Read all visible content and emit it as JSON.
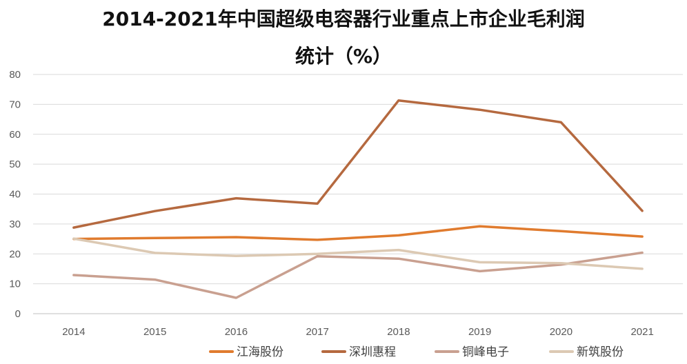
{
  "chart_data": {
    "type": "line",
    "title_line1": "2014-2021年中国超级电容器行业重点上市企业毛利润",
    "title_line2": "统计（%）",
    "x": [
      "2014",
      "2015",
      "2016",
      "2017",
      "2018",
      "2019",
      "2020",
      "2021"
    ],
    "ylim": [
      0,
      80
    ],
    "yticks": [
      "0",
      "10",
      "20",
      "30",
      "40",
      "50",
      "60",
      "70",
      "80"
    ],
    "grid": true,
    "legend_position": "bottom",
    "series": [
      {
        "name": "江海股份",
        "color": "#E07B2E",
        "values": [
          25.0,
          25.3,
          25.6,
          24.7,
          26.2,
          29.2,
          27.6,
          25.8
        ]
      },
      {
        "name": "深圳惠程",
        "color": "#B5693F",
        "values": [
          28.8,
          34.3,
          38.6,
          36.8,
          71.3,
          68.2,
          64.0,
          34.4
        ]
      },
      {
        "name": "铜峰电子",
        "color": "#C9A090",
        "values": [
          12.9,
          11.4,
          5.3,
          19.2,
          18.4,
          14.2,
          16.4,
          20.4
        ]
      },
      {
        "name": "新筑股份",
        "color": "#DCC9B3",
        "values": [
          25.1,
          20.3,
          19.3,
          20.0,
          21.3,
          17.2,
          16.9,
          15.0
        ]
      }
    ]
  }
}
